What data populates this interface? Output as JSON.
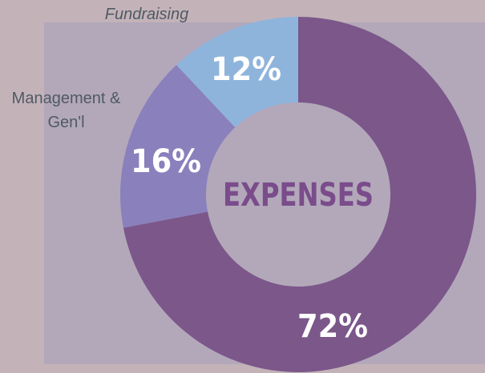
{
  "chart_data": {
    "type": "donut",
    "title": "EXPENSES",
    "categories": [
      null,
      "Management & Gen'l",
      "Fundraising"
    ],
    "values": [
      72,
      16,
      12
    ],
    "value_labels": [
      "72%",
      "16%",
      "12%"
    ],
    "colors": [
      "#7b578a",
      "#8a80bc",
      "#8fb4dc"
    ]
  }
}
